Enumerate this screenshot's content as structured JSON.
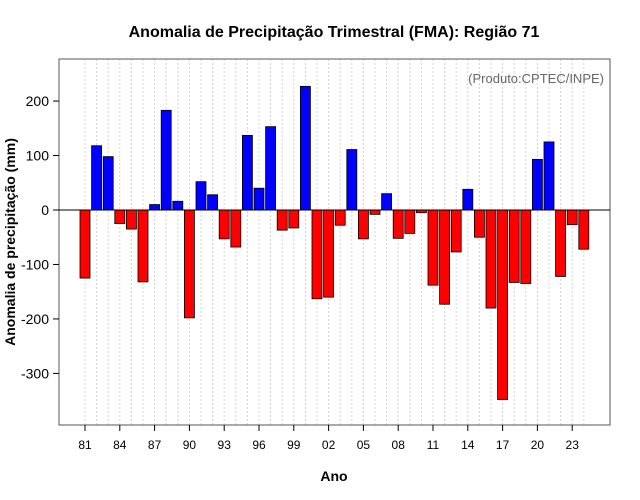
{
  "chart_data": {
    "type": "bar",
    "title": "Anomalia de Precipitação Trimestral (FMA): Região 71",
    "xlabel": "Ano",
    "ylabel": "Anomalia de precipitação (mm)",
    "annotation": "(Produto:CPTEC/INPE)",
    "ylim": [
      -400,
      280
    ],
    "yticks": [
      -300,
      -200,
      -100,
      0,
      100,
      200
    ],
    "ytick_labels": [
      "-300",
      "-200",
      "-100",
      "0",
      "100",
      "200"
    ],
    "xtick_labels": [
      "81",
      "84",
      "87",
      "90",
      "93",
      "96",
      "99",
      "02",
      "05",
      "08",
      "11",
      "14",
      "17",
      "20",
      "23"
    ],
    "xtick_every": 3,
    "grid": true,
    "positive_color": "#0000ff",
    "negative_color": "#ff0000",
    "categories": [
      "1981",
      "1982",
      "1983",
      "1984",
      "1985",
      "1986",
      "1987",
      "1988",
      "1989",
      "1990",
      "1991",
      "1992",
      "1993",
      "1994",
      "1995",
      "1996",
      "1997",
      "1998",
      "1999",
      "2000",
      "2001",
      "2002",
      "2003",
      "2004",
      "2005",
      "2006",
      "2007",
      "2008",
      "2009",
      "2010",
      "2011",
      "2012",
      "2013",
      "2014",
      "2015",
      "2016",
      "2017",
      "2018",
      "2019",
      "2020",
      "2021",
      "2022",
      "2023",
      "2024"
    ],
    "values": [
      -125,
      118,
      98,
      -25,
      -35,
      -132,
      10,
      183,
      16,
      -198,
      52,
      28,
      -53,
      -68,
      137,
      40,
      153,
      -37,
      -33,
      227,
      -163,
      -160,
      -28,
      111,
      -53,
      -8,
      30,
      -52,
      -43,
      -5,
      -138,
      -173,
      -77,
      38,
      -50,
      -180,
      -348,
      -133,
      -135,
      93,
      125,
      -122,
      -27,
      -72
    ]
  }
}
